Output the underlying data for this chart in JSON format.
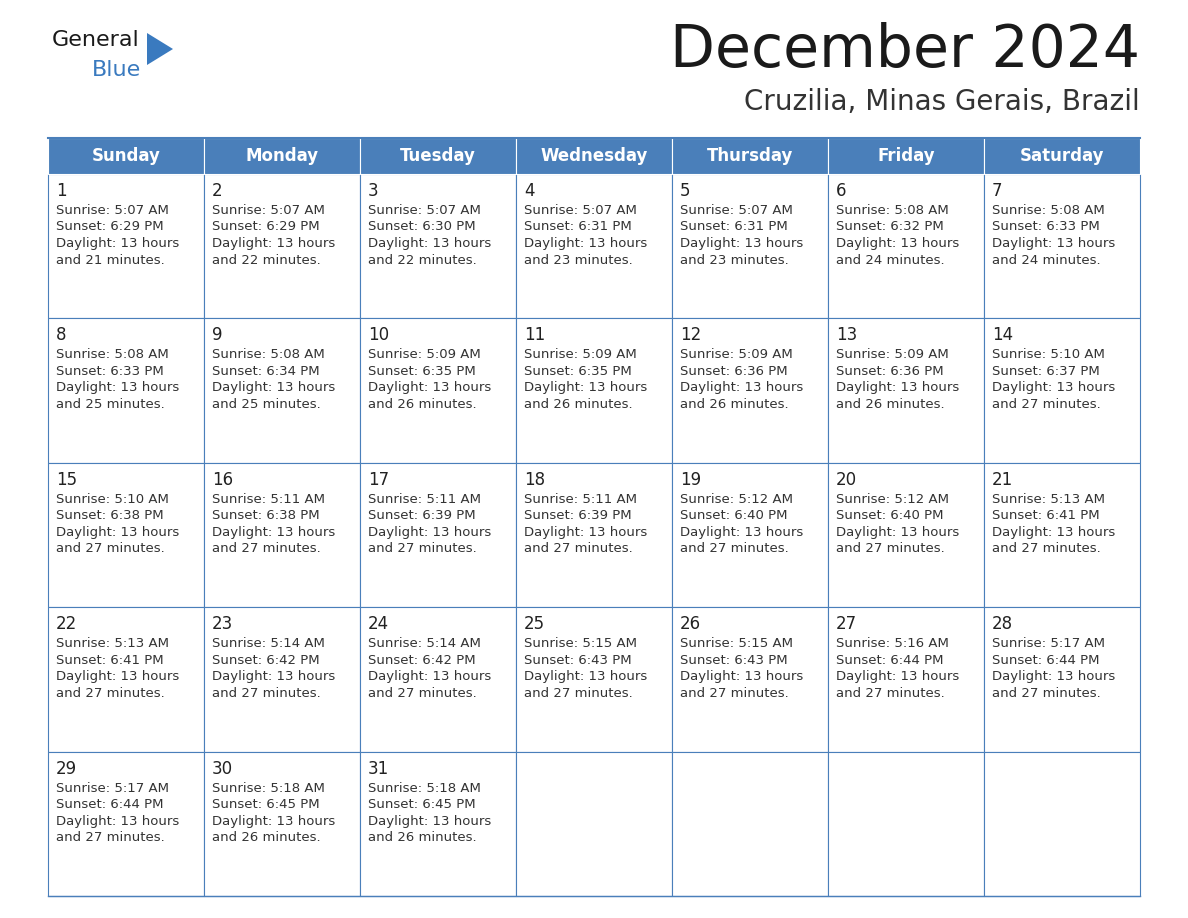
{
  "title": "December 2024",
  "subtitle": "Cruzilia, Minas Gerais, Brazil",
  "days_of_week": [
    "Sunday",
    "Monday",
    "Tuesday",
    "Wednesday",
    "Thursday",
    "Friday",
    "Saturday"
  ],
  "header_bg": "#4a7fba",
  "header_text": "#ffffff",
  "cell_bg": "#ffffff",
  "border_color": "#4a7fba",
  "day_num_color": "#222222",
  "text_color": "#333333",
  "title_color": "#1a1a1a",
  "subtitle_color": "#333333",
  "logo_general_color": "#1a1a1a",
  "logo_blue_color": "#3a7abf",
  "logo_triangle_color": "#3a7abf",
  "calendar": [
    [
      {
        "day": 1,
        "sunrise": "5:07 AM",
        "sunset": "6:29 PM",
        "dl_hours": 13,
        "dl_minutes": 21
      },
      {
        "day": 2,
        "sunrise": "5:07 AM",
        "sunset": "6:29 PM",
        "dl_hours": 13,
        "dl_minutes": 22
      },
      {
        "day": 3,
        "sunrise": "5:07 AM",
        "sunset": "6:30 PM",
        "dl_hours": 13,
        "dl_minutes": 22
      },
      {
        "day": 4,
        "sunrise": "5:07 AM",
        "sunset": "6:31 PM",
        "dl_hours": 13,
        "dl_minutes": 23
      },
      {
        "day": 5,
        "sunrise": "5:07 AM",
        "sunset": "6:31 PM",
        "dl_hours": 13,
        "dl_minutes": 23
      },
      {
        "day": 6,
        "sunrise": "5:08 AM",
        "sunset": "6:32 PM",
        "dl_hours": 13,
        "dl_minutes": 24
      },
      {
        "day": 7,
        "sunrise": "5:08 AM",
        "sunset": "6:33 PM",
        "dl_hours": 13,
        "dl_minutes": 24
      }
    ],
    [
      {
        "day": 8,
        "sunrise": "5:08 AM",
        "sunset": "6:33 PM",
        "dl_hours": 13,
        "dl_minutes": 25
      },
      {
        "day": 9,
        "sunrise": "5:08 AM",
        "sunset": "6:34 PM",
        "dl_hours": 13,
        "dl_minutes": 25
      },
      {
        "day": 10,
        "sunrise": "5:09 AM",
        "sunset": "6:35 PM",
        "dl_hours": 13,
        "dl_minutes": 26
      },
      {
        "day": 11,
        "sunrise": "5:09 AM",
        "sunset": "6:35 PM",
        "dl_hours": 13,
        "dl_minutes": 26
      },
      {
        "day": 12,
        "sunrise": "5:09 AM",
        "sunset": "6:36 PM",
        "dl_hours": 13,
        "dl_minutes": 26
      },
      {
        "day": 13,
        "sunrise": "5:09 AM",
        "sunset": "6:36 PM",
        "dl_hours": 13,
        "dl_minutes": 26
      },
      {
        "day": 14,
        "sunrise": "5:10 AM",
        "sunset": "6:37 PM",
        "dl_hours": 13,
        "dl_minutes": 27
      }
    ],
    [
      {
        "day": 15,
        "sunrise": "5:10 AM",
        "sunset": "6:38 PM",
        "dl_hours": 13,
        "dl_minutes": 27
      },
      {
        "day": 16,
        "sunrise": "5:11 AM",
        "sunset": "6:38 PM",
        "dl_hours": 13,
        "dl_minutes": 27
      },
      {
        "day": 17,
        "sunrise": "5:11 AM",
        "sunset": "6:39 PM",
        "dl_hours": 13,
        "dl_minutes": 27
      },
      {
        "day": 18,
        "sunrise": "5:11 AM",
        "sunset": "6:39 PM",
        "dl_hours": 13,
        "dl_minutes": 27
      },
      {
        "day": 19,
        "sunrise": "5:12 AM",
        "sunset": "6:40 PM",
        "dl_hours": 13,
        "dl_minutes": 27
      },
      {
        "day": 20,
        "sunrise": "5:12 AM",
        "sunset": "6:40 PM",
        "dl_hours": 13,
        "dl_minutes": 27
      },
      {
        "day": 21,
        "sunrise": "5:13 AM",
        "sunset": "6:41 PM",
        "dl_hours": 13,
        "dl_minutes": 27
      }
    ],
    [
      {
        "day": 22,
        "sunrise": "5:13 AM",
        "sunset": "6:41 PM",
        "dl_hours": 13,
        "dl_minutes": 27
      },
      {
        "day": 23,
        "sunrise": "5:14 AM",
        "sunset": "6:42 PM",
        "dl_hours": 13,
        "dl_minutes": 27
      },
      {
        "day": 24,
        "sunrise": "5:14 AM",
        "sunset": "6:42 PM",
        "dl_hours": 13,
        "dl_minutes": 27
      },
      {
        "day": 25,
        "sunrise": "5:15 AM",
        "sunset": "6:43 PM",
        "dl_hours": 13,
        "dl_minutes": 27
      },
      {
        "day": 26,
        "sunrise": "5:15 AM",
        "sunset": "6:43 PM",
        "dl_hours": 13,
        "dl_minutes": 27
      },
      {
        "day": 27,
        "sunrise": "5:16 AM",
        "sunset": "6:44 PM",
        "dl_hours": 13,
        "dl_minutes": 27
      },
      {
        "day": 28,
        "sunrise": "5:17 AM",
        "sunset": "6:44 PM",
        "dl_hours": 13,
        "dl_minutes": 27
      }
    ],
    [
      {
        "day": 29,
        "sunrise": "5:17 AM",
        "sunset": "6:44 PM",
        "dl_hours": 13,
        "dl_minutes": 27
      },
      {
        "day": 30,
        "sunrise": "5:18 AM",
        "sunset": "6:45 PM",
        "dl_hours": 13,
        "dl_minutes": 26
      },
      {
        "day": 31,
        "sunrise": "5:18 AM",
        "sunset": "6:45 PM",
        "dl_hours": 13,
        "dl_minutes": 26
      },
      null,
      null,
      null,
      null
    ]
  ]
}
